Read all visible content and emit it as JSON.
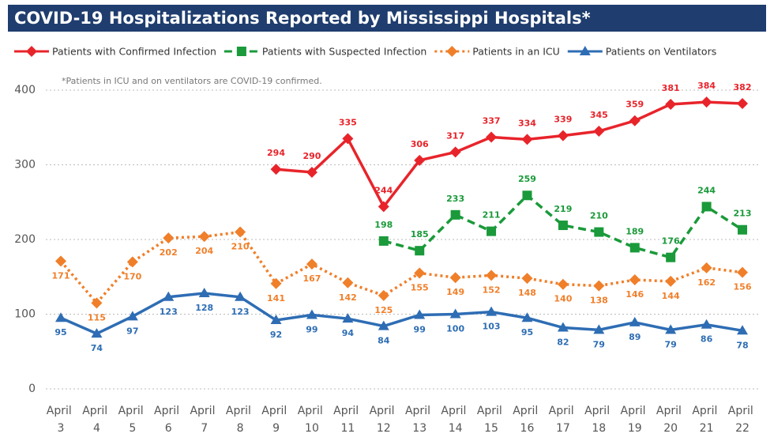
{
  "chart_data": {
    "type": "line",
    "title": "COVID-19 Hospitalizations Reported by Mississippi Hospitals*",
    "annotation": "*Patients in ICU and on ventilators are COVID-19 confirmed.",
    "categories": [
      "April 3",
      "April 4",
      "April 5",
      "April 6",
      "April 7",
      "April 8",
      "April 9",
      "April 10",
      "April 11",
      "April 12",
      "April 13",
      "April 14",
      "April 15",
      "April 16",
      "April 17",
      "April 18",
      "April 19",
      "April 20",
      "April 21",
      "April 22"
    ],
    "series": [
      {
        "name": "Patients with Confirmed Infection",
        "color": "#e8242b",
        "dash": "solid",
        "marker": "diamond",
        "values": [
          null,
          null,
          null,
          null,
          null,
          null,
          294,
          290,
          335,
          244,
          306,
          317,
          337,
          334,
          339,
          345,
          359,
          381,
          384,
          382
        ]
      },
      {
        "name": "Patients with Suspected Infection",
        "color": "#1a9a3a",
        "dash": "dashed",
        "marker": "square",
        "values": [
          null,
          null,
          null,
          null,
          null,
          null,
          null,
          null,
          null,
          198,
          185,
          233,
          211,
          259,
          219,
          210,
          189,
          176,
          244,
          213
        ]
      },
      {
        "name": "Patients in an ICU",
        "color": "#f07f2a",
        "dash": "dotted",
        "marker": "diamond",
        "values": [
          171,
          115,
          170,
          202,
          204,
          210,
          141,
          167,
          142,
          125,
          155,
          149,
          152,
          148,
          140,
          138,
          146,
          144,
          162,
          156
        ]
      },
      {
        "name": "Patients on Ventilators",
        "color": "#2e6db4",
        "dash": "solid",
        "marker": "triangle",
        "values": [
          95,
          74,
          97,
          123,
          128,
          123,
          92,
          99,
          94,
          84,
          99,
          100,
          103,
          95,
          82,
          79,
          89,
          79,
          86,
          78
        ]
      }
    ],
    "ylim": [
      0,
      400
    ],
    "yticks": [
      0,
      100,
      200,
      300,
      400
    ],
    "grid": true
  }
}
